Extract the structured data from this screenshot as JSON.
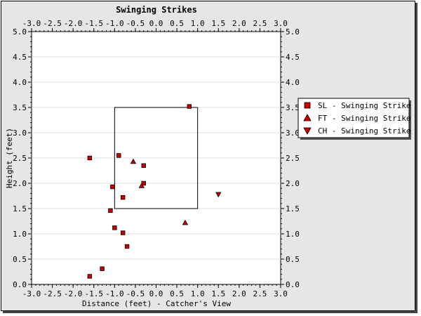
{
  "chart_data": {
    "type": "scatter",
    "title": "Swinging Strikes",
    "xlabel": "Distance (feet) - Catcher's View",
    "ylabel": "Height (feet)",
    "xlim": [
      -3.0,
      3.0
    ],
    "ylim": [
      0.0,
      5.0
    ],
    "x_ticks": [
      "-3.0",
      "-2.5",
      "-2.0",
      "-1.5",
      "-1.0",
      "-0.5",
      "0.0",
      "0.5",
      "1.0",
      "1.5",
      "2.0",
      "2.5",
      "3.0"
    ],
    "y_ticks": [
      "0.0",
      "0.5",
      "1.0",
      "1.5",
      "2.0",
      "2.5",
      "3.0",
      "3.5",
      "4.0",
      "4.5",
      "5.0"
    ],
    "grid": "horizontal",
    "legend_position": "right",
    "strike_zone": {
      "x": [
        -1.0,
        1.0
      ],
      "y": [
        1.5,
        3.5
      ]
    },
    "marker_color": "#cc0000",
    "series": [
      {
        "name": "SL - Swinging Strike",
        "marker": "square",
        "points": [
          [
            0.8,
            3.52
          ],
          [
            -1.6,
            2.5
          ],
          [
            -0.9,
            2.55
          ],
          [
            -0.3,
            2.35
          ],
          [
            -1.05,
            1.93
          ],
          [
            -0.3,
            2.0
          ],
          [
            -0.8,
            1.72
          ],
          [
            -1.1,
            1.46
          ],
          [
            -1.0,
            1.12
          ],
          [
            -0.8,
            1.02
          ],
          [
            -0.7,
            0.75
          ],
          [
            -1.3,
            0.31
          ],
          [
            -1.6,
            0.16
          ]
        ]
      },
      {
        "name": "FT - Swinging Strike",
        "marker": "triangle-up",
        "points": [
          [
            -0.55,
            2.43
          ],
          [
            -0.35,
            1.95
          ],
          [
            0.7,
            1.22
          ]
        ]
      },
      {
        "name": "CH - Swinging Strike",
        "marker": "triangle-down",
        "points": [
          [
            1.5,
            1.78
          ]
        ]
      }
    ]
  }
}
